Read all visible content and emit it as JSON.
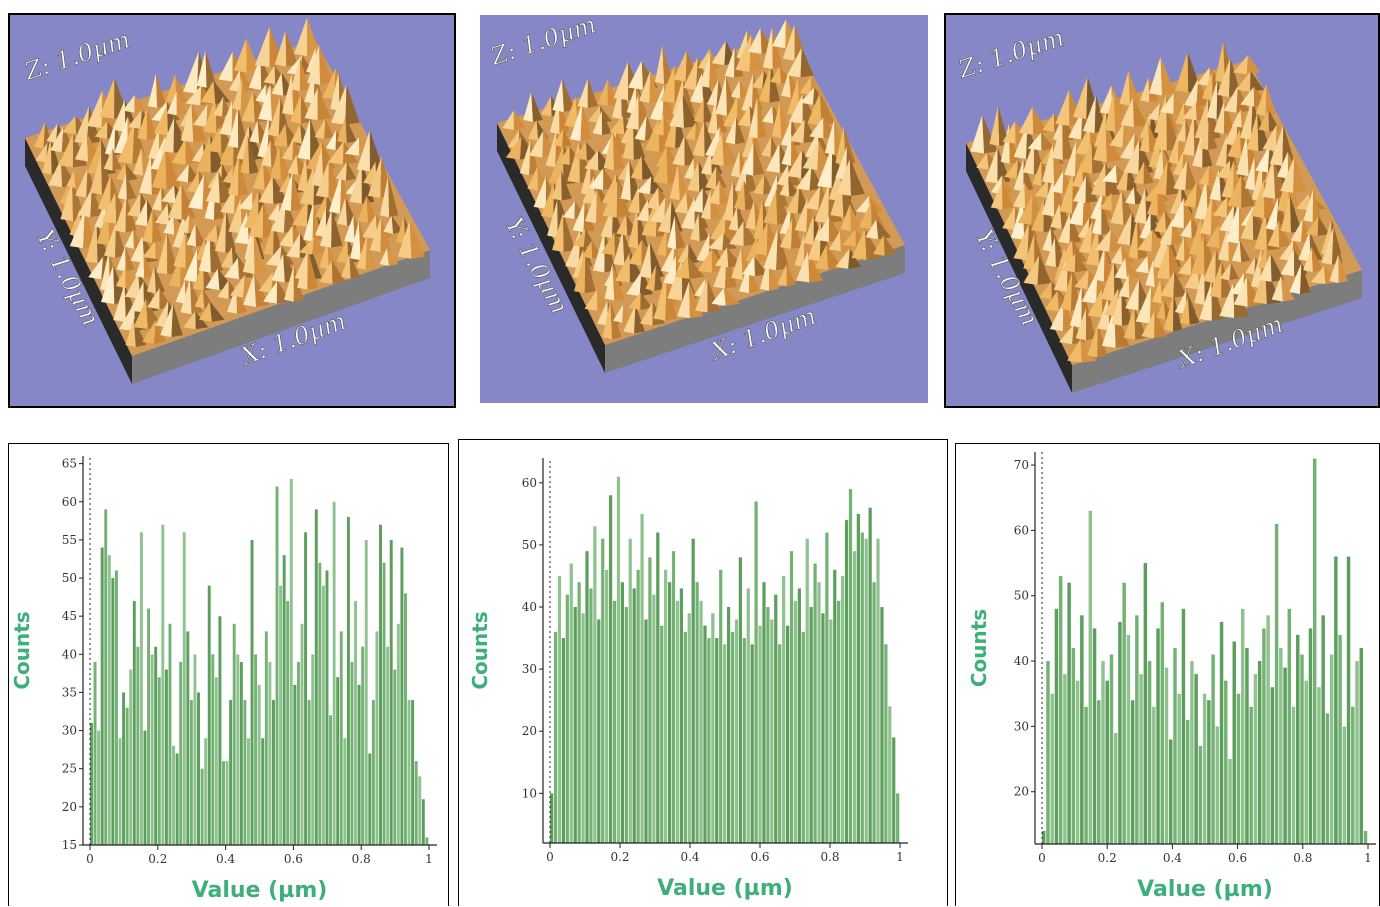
{
  "surface_panels": [
    {
      "z_label": "Z: 1.0µm",
      "y_label": "Y: 1.0µm",
      "x_label": "X: 1.0µm"
    },
    {
      "z_label": "Z: 1.0µm",
      "y_label": "Y: 1.0µm",
      "x_label": "X: 1.0µm"
    },
    {
      "z_label": "Z: 1.0µm",
      "y_label": "Y: 1.0µm",
      "x_label": "X: 1.0µm"
    }
  ],
  "colors": {
    "surface_bg": "#8587c6",
    "bar_fill": "#6aaa6a",
    "axis_title": "#3daf7a"
  },
  "chart_data": [
    {
      "type": "bar",
      "xlabel": "Value (µm)",
      "ylabel": "Counts",
      "xlim": [
        0,
        1
      ],
      "ylim": [
        15,
        66
      ],
      "x_ticks": [
        "0",
        "0.2",
        "0.4",
        "0.6",
        "0.8",
        "1"
      ],
      "y_ticks": [
        "15",
        "20",
        "25",
        "30",
        "35",
        "40",
        "45",
        "50",
        "55",
        "60",
        "65"
      ],
      "values": [
        31,
        39,
        30,
        54,
        59,
        53,
        50,
        51,
        29,
        35,
        33,
        38,
        47,
        41,
        56,
        30,
        46,
        40,
        41,
        37,
        57,
        38,
        44,
        28,
        27,
        39,
        56,
        43,
        34,
        40,
        35,
        25,
        29,
        49,
        40,
        37,
        45,
        26,
        26,
        34,
        44,
        40,
        39,
        34,
        29,
        55,
        40,
        36,
        29,
        43,
        39,
        34,
        62,
        49,
        53,
        47,
        63,
        36,
        39,
        44,
        56,
        34,
        40,
        59,
        52,
        49,
        51,
        32,
        60,
        37,
        43,
        29,
        58,
        39,
        47,
        36,
        41,
        55,
        27,
        34,
        43,
        57,
        52,
        41,
        55,
        38,
        44,
        54,
        48,
        34,
        34,
        26,
        24,
        21,
        16
      ]
    },
    {
      "type": "bar",
      "xlabel": "Value (µm)",
      "ylabel": "Counts",
      "xlim": [
        0,
        1
      ],
      "ylim": [
        2,
        64
      ],
      "x_ticks": [
        "0",
        "0.2",
        "0.4",
        "0.6",
        "0.8",
        "1"
      ],
      "y_ticks": [
        "10",
        "20",
        "30",
        "40",
        "50",
        "60"
      ],
      "values": [
        10,
        36,
        45,
        35,
        42,
        47,
        40,
        44,
        39,
        49,
        43,
        53,
        38,
        51,
        46,
        58,
        41,
        61,
        44,
        40,
        51,
        43,
        46,
        55,
        38,
        48,
        42,
        52,
        37,
        46,
        44,
        49,
        41,
        43,
        36,
        39,
        51,
        44,
        41,
        37,
        35,
        39,
        35,
        46,
        34,
        40,
        36,
        38,
        48,
        35,
        43,
        34,
        57,
        37,
        44,
        40,
        38,
        42,
        34,
        45,
        37,
        49,
        41,
        43,
        36,
        51,
        40,
        47,
        44,
        39,
        52,
        38,
        46,
        41,
        45,
        54,
        59,
        49,
        55,
        52,
        51,
        56,
        44,
        51,
        40,
        34,
        24,
        19,
        10
      ]
    },
    {
      "type": "bar",
      "xlabel": "Value (µm)",
      "ylabel": "Counts",
      "xlim": [
        0,
        1
      ],
      "ylim": [
        12,
        72
      ],
      "x_ticks": [
        "0",
        "0.2",
        "0.4",
        "0.6",
        "0.8",
        "1"
      ],
      "y_ticks": [
        "20",
        "30",
        "40",
        "50",
        "60",
        "70"
      ],
      "values": [
        14,
        40,
        35,
        48,
        53,
        38,
        52,
        42,
        37,
        47,
        33,
        63,
        45,
        34,
        40,
        37,
        41,
        29,
        46,
        52,
        44,
        34,
        47,
        38,
        55,
        40,
        33,
        45,
        49,
        39,
        28,
        42,
        35,
        48,
        31,
        40,
        38,
        27,
        35,
        34,
        41,
        30,
        46,
        37,
        25,
        43,
        35,
        48,
        42,
        33,
        38,
        40,
        45,
        47,
        36,
        61,
        42,
        39,
        48,
        33,
        44,
        41,
        37,
        45,
        71,
        36,
        47,
        32,
        41,
        56,
        44,
        30,
        56,
        33,
        40,
        42,
        14
      ]
    }
  ]
}
